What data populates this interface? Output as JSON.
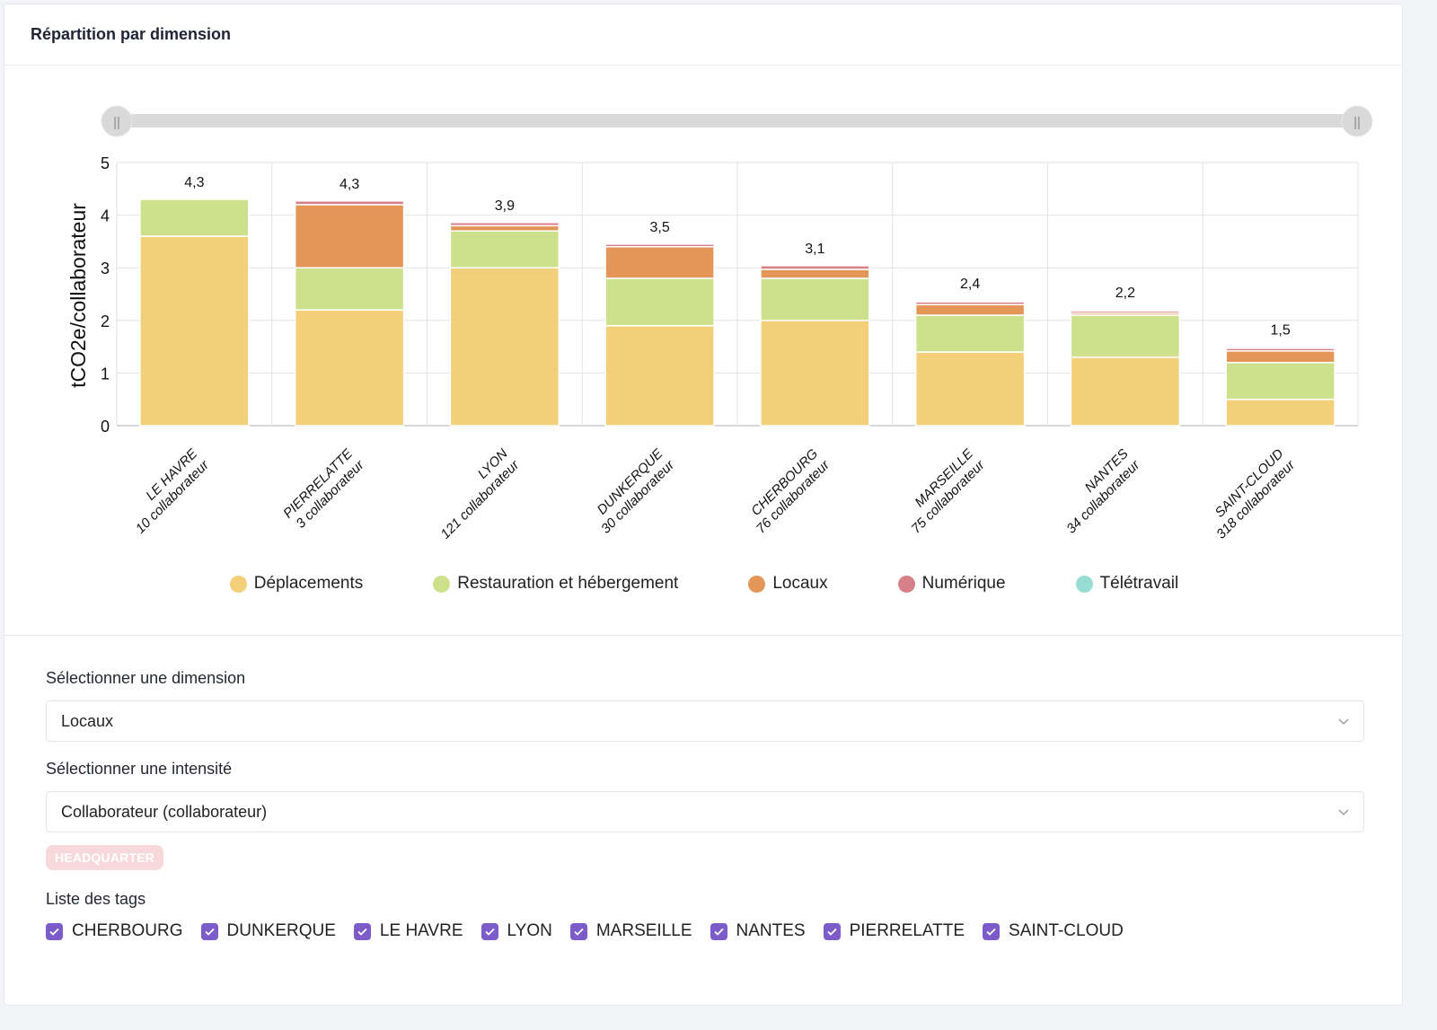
{
  "card": {
    "title": "Répartition par dimension"
  },
  "range_slider": {
    "start": 0,
    "end": 1,
    "handle_glyph": "||"
  },
  "chart_data": {
    "type": "bar",
    "stacked": true,
    "title": "",
    "xlabel": "",
    "ylabel": "tCO2e/collaborateur",
    "ylim": [
      0,
      5
    ],
    "yticks": [
      0,
      1,
      2,
      3,
      4,
      5
    ],
    "grid": true,
    "legend_position": "bottom",
    "categories": [
      {
        "name": "LE HAVRE",
        "sub": "10 collaborateur"
      },
      {
        "name": "PIERRELATTE",
        "sub": "3 collaborateur"
      },
      {
        "name": "LYON",
        "sub": "121 collaborateur"
      },
      {
        "name": "DUNKERQUE",
        "sub": "30 collaborateur"
      },
      {
        "name": "CHERBOURG",
        "sub": "76 collaborateur"
      },
      {
        "name": "MARSEILLE",
        "sub": "75 collaborateur"
      },
      {
        "name": "NANTES",
        "sub": "34 collaborateur"
      },
      {
        "name": "SAINT-CLOUD",
        "sub": "318 collaborateur"
      }
    ],
    "totals_labels": [
      "4,3",
      "4,3",
      "3,9",
      "3,5",
      "3,1",
      "2,4",
      "2,2",
      "1,5"
    ],
    "series": [
      {
        "name": "Déplacements",
        "color": "#f2cf78",
        "values": [
          3.6,
          2.2,
          3.0,
          1.9,
          2.0,
          1.4,
          1.3,
          0.5
        ]
      },
      {
        "name": "Restauration et hébergement",
        "color": "#cde08b",
        "values": [
          0.7,
          0.8,
          0.7,
          0.9,
          0.8,
          0.7,
          0.8,
          0.7
        ]
      },
      {
        "name": "Locaux",
        "color": "#e39657",
        "values": [
          0.0,
          1.2,
          0.1,
          0.6,
          0.17,
          0.2,
          0.04,
          0.22
        ]
      },
      {
        "name": "Numérique",
        "color": "#d78089",
        "values": [
          0.0,
          0.07,
          0.06,
          0.05,
          0.07,
          0.06,
          0.04,
          0.05
        ]
      },
      {
        "name": "Télétravail",
        "color": "#97ddd2",
        "values": [
          0.0,
          0.0,
          0.0,
          0.0,
          0.0,
          0.01,
          0.02,
          0.02
        ]
      }
    ]
  },
  "controls": {
    "dimension_label": "Sélectionner une dimension",
    "dimension_value": "Locaux",
    "intensity_label": "Sélectionner une intensité",
    "intensity_value": "Collaborateur (collaborateur)",
    "badge": "HEADQUARTER",
    "tags_label": "Liste des tags",
    "tags": [
      {
        "label": "CHERBOURG",
        "checked": true
      },
      {
        "label": "DUNKERQUE",
        "checked": true
      },
      {
        "label": "LE HAVRE",
        "checked": true
      },
      {
        "label": "LYON",
        "checked": true
      },
      {
        "label": "MARSEILLE",
        "checked": true
      },
      {
        "label": "NANTES",
        "checked": true
      },
      {
        "label": "PIERRELATTE",
        "checked": true
      },
      {
        "label": "SAINT-CLOUD",
        "checked": true
      }
    ],
    "accent_color": "#7b5cc9"
  }
}
